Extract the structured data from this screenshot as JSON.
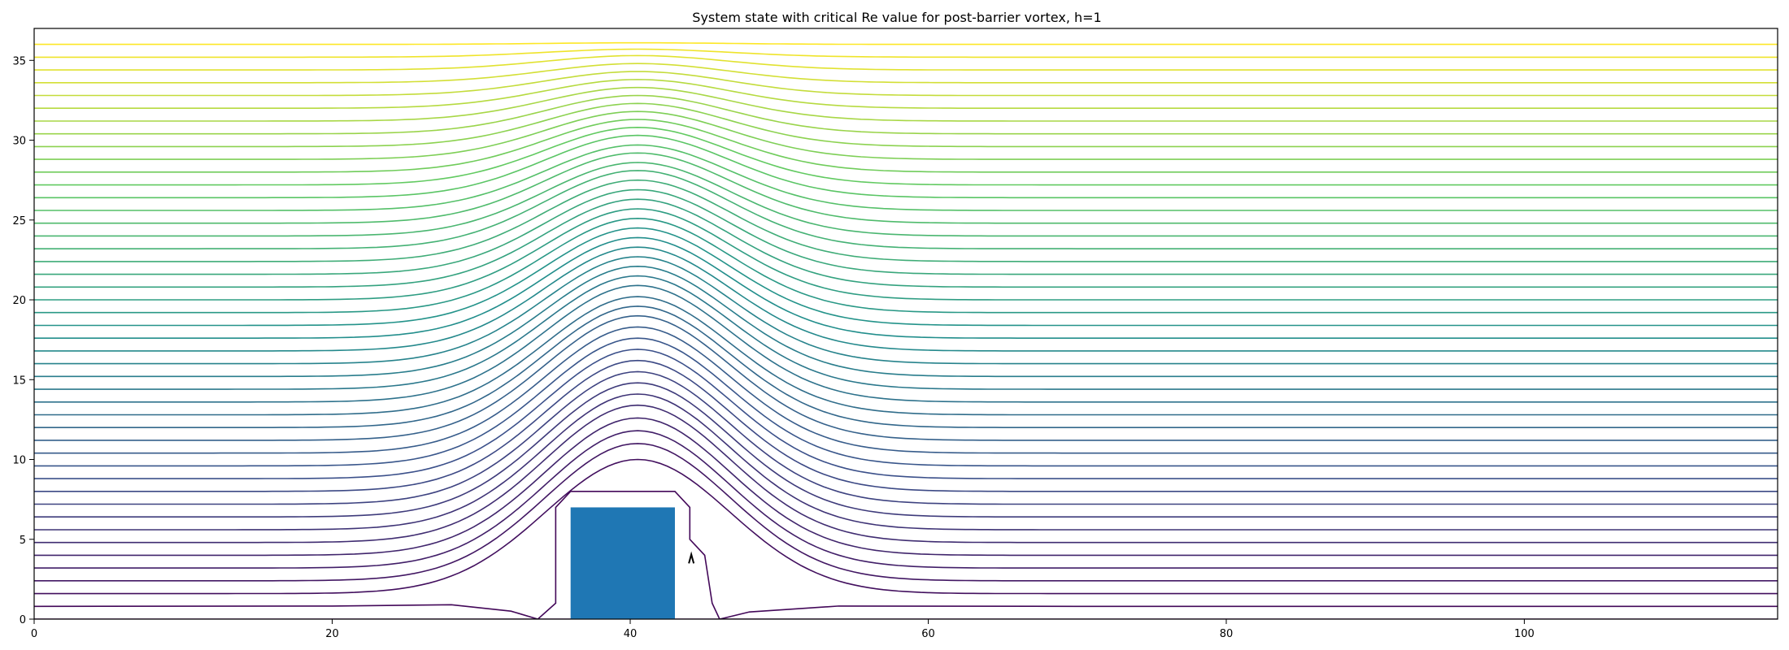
{
  "chart_data": {
    "type": "contour",
    "title": "System state with critical Re value for post-barrier vortex, h=1",
    "xlabel": "",
    "ylabel": "",
    "xlim": [
      0,
      117
    ],
    "ylim": [
      0,
      37
    ],
    "xticks": [
      0,
      20,
      40,
      60,
      80,
      100
    ],
    "yticks": [
      0,
      5,
      10,
      15,
      20,
      25,
      30,
      35
    ],
    "grid": false,
    "colormap": "viridis",
    "barrier": {
      "x": [
        36,
        43
      ],
      "y": [
        0,
        7
      ],
      "color": "#1f77b4"
    },
    "streamlines": {
      "count": 46,
      "y_far": [
        0,
        0.8,
        1.6,
        2.4,
        3.2,
        4.0,
        4.8,
        5.6,
        6.4,
        7.2,
        8.0,
        8.8,
        9.6,
        10.4,
        11.2,
        12.0,
        12.8,
        13.6,
        14.4,
        15.2,
        16.0,
        16.8,
        17.6,
        18.4,
        19.2,
        20.0,
        20.8,
        21.6,
        22.4,
        23.2,
        24.0,
        24.8,
        25.6,
        26.4,
        27.2,
        28.0,
        28.8,
        29.6,
        30.4,
        31.2,
        32.0,
        32.8,
        33.6,
        34.4,
        35.2,
        36.0
      ],
      "y_peak_at_x40": [
        0,
        8.0,
        10.0,
        11.0,
        11.8,
        12.6,
        13.4,
        14.1,
        14.8,
        15.5,
        16.2,
        16.9,
        17.6,
        18.3,
        19.0,
        19.6,
        20.2,
        20.9,
        21.5,
        22.1,
        22.7,
        23.3,
        23.9,
        24.5,
        25.1,
        25.7,
        26.3,
        26.9,
        27.5,
        28.1,
        28.6,
        29.2,
        29.7,
        30.3,
        30.8,
        31.3,
        31.8,
        32.3,
        32.8,
        33.3,
        33.8,
        34.3,
        34.8,
        35.3,
        35.7,
        36.1
      ]
    },
    "small_vortex": {
      "x": 44.1,
      "y": 3.8
    }
  }
}
